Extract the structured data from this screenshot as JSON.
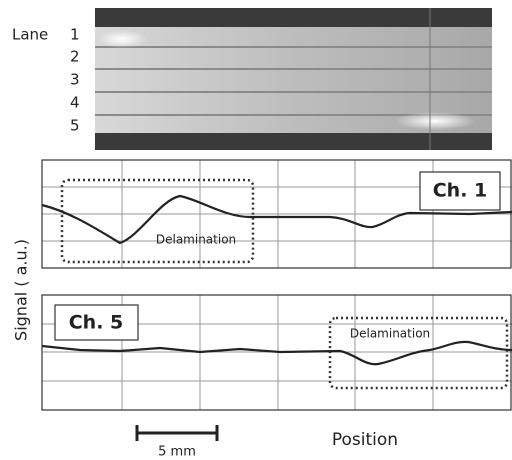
{
  "image": {
    "lane_heading": "Lane",
    "lanes": [
      "1",
      "2",
      "3",
      "4",
      "5"
    ]
  },
  "y_axis_label": "Signal ( a.u.)",
  "panels": [
    {
      "channel": "Ch. 1",
      "annotation": "Delamination"
    },
    {
      "channel": "Ch. 5",
      "annotation": "Delamination"
    }
  ],
  "scale_bar": "5 mm",
  "x_axis_label": "Position"
}
